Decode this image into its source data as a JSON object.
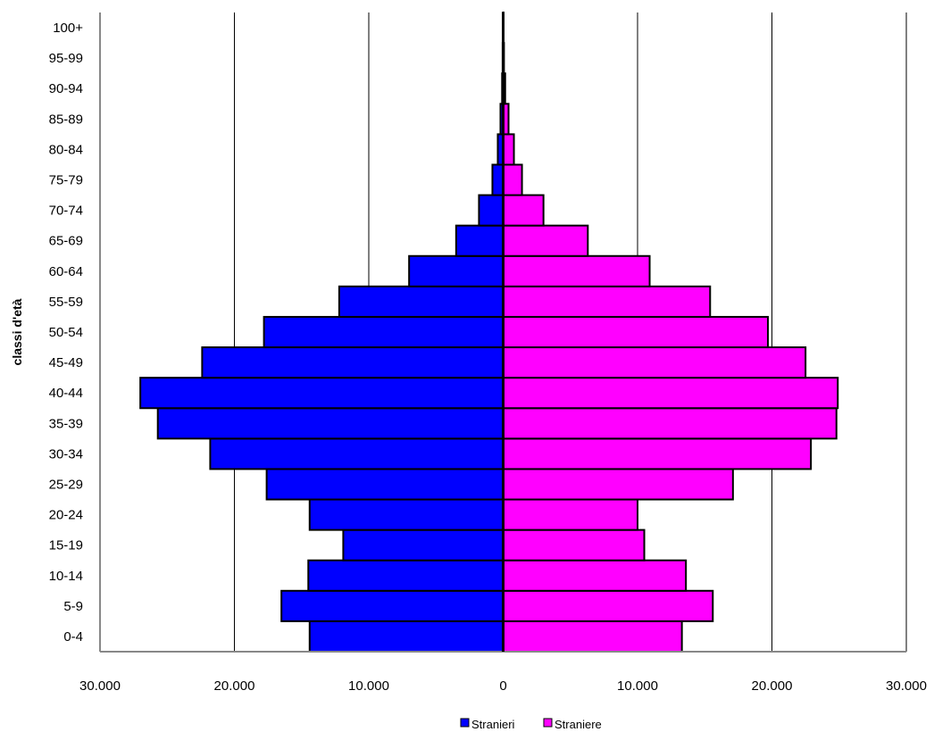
{
  "chart_data": {
    "type": "bar",
    "orientation": "horizontal",
    "ylabel": "classi d'età",
    "categories": [
      "0-4",
      "5-9",
      "10-14",
      "15-19",
      "20-24",
      "25-29",
      "30-34",
      "35-39",
      "40-44",
      "45-49",
      "50-54",
      "55-59",
      "60-64",
      "65-69",
      "70-74",
      "75-79",
      "80-84",
      "85-89",
      "90-94",
      "95-99",
      "100+"
    ],
    "series": [
      {
        "name": "Stranieri",
        "color": "#0000ff",
        "side": "left",
        "values": [
          14400,
          16500,
          14500,
          11900,
          14400,
          17600,
          21800,
          25700,
          27000,
          22400,
          17800,
          12200,
          7000,
          3500,
          1800,
          800,
          400,
          200,
          80,
          40,
          20
        ]
      },
      {
        "name": "Straniere",
        "color": "#ff00ff",
        "side": "right",
        "values": [
          13300,
          15600,
          13600,
          10500,
          10000,
          17100,
          22900,
          24800,
          24900,
          22500,
          19700,
          15400,
          10900,
          6300,
          3000,
          1400,
          800,
          400,
          150,
          60,
          30
        ]
      }
    ],
    "x_ticks": [
      "30.000",
      "20.000",
      "10.000",
      "0",
      "10.000",
      "20.000",
      "30.000"
    ],
    "xlim": [
      -30000,
      30000
    ],
    "grid": "vertical",
    "legend": "bottom",
    "legend_labels": [
      "Stranieri",
      "Straniere"
    ]
  }
}
